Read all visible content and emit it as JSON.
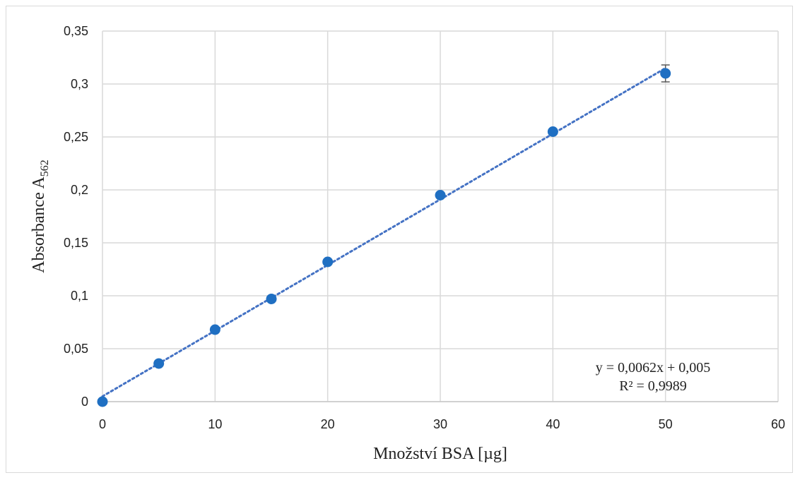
{
  "chart_data": {
    "type": "scatter",
    "xlabel": "Množství BSA [µg]",
    "ylabel_main": "Absorbance A",
    "ylabel_sub": "562",
    "xlim": [
      0,
      60
    ],
    "ylim": [
      0,
      0.35
    ],
    "x_ticks": [
      0,
      10,
      20,
      30,
      40,
      50,
      60
    ],
    "x_tick_labels": [
      "0",
      "10",
      "20",
      "30",
      "40",
      "50",
      "60"
    ],
    "y_ticks": [
      0,
      0.05,
      0.1,
      0.15,
      0.2,
      0.25,
      0.3,
      0.35
    ],
    "y_tick_labels": [
      "0",
      "0,05",
      "0,1",
      "0,15",
      "0,2",
      "0,25",
      "0,3",
      "0,35"
    ],
    "grid": true,
    "series": [
      {
        "x": [
          0,
          5,
          10,
          15,
          20,
          30,
          40,
          50
        ],
        "y": [
          0,
          0.036,
          0.068,
          0.097,
          0.132,
          0.195,
          0.255,
          0.31
        ],
        "error_bars": [
          0,
          0,
          0,
          0,
          0,
          0,
          0,
          0.008
        ],
        "color": "#1f6fc2"
      }
    ],
    "trendline": {
      "type": "linear",
      "slope": 0.0062,
      "intercept": 0.005,
      "x_range": [
        0,
        50
      ],
      "style": "dotted",
      "color": "#4472c4",
      "equation_label": "y = 0,0062x + 0,005",
      "r2_label": "R² = 0,9989"
    }
  }
}
